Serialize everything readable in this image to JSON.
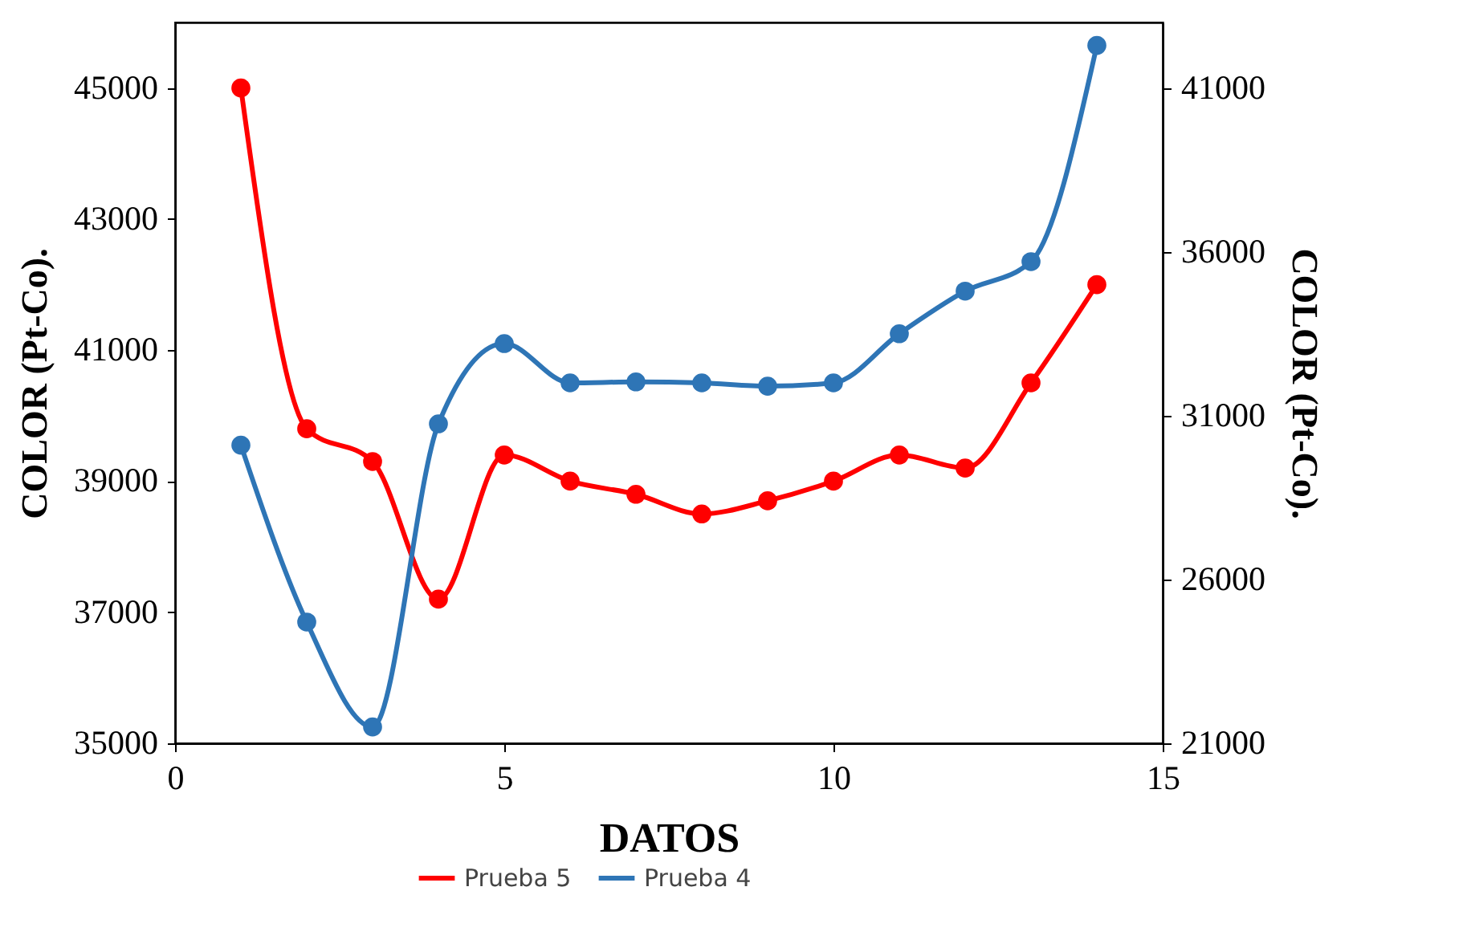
{
  "chart_data": {
    "type": "line",
    "xlabel": "DATOS",
    "ylabel": "COLOR  (Pt-Co).",
    "y2label": "COLOR  (Pt-Co).",
    "x": [
      1,
      2,
      3,
      4,
      5,
      6,
      7,
      8,
      9,
      10,
      11,
      12,
      13,
      14
    ],
    "series": [
      {
        "name": "Prueba 5",
        "color": "#ff0000",
        "values": [
          45000,
          39800,
          39300,
          37200,
          39400,
          39000,
          38800,
          38500,
          38700,
          39000,
          39400,
          39200,
          40500,
          42000
        ]
      },
      {
        "name": "Prueba 4",
        "color": "#2e75b6",
        "axis": "y2",
        "values": [
          30100,
          24700,
          21500,
          30750,
          33200,
          32000,
          32030,
          32000,
          31900,
          32000,
          33500,
          34800,
          35700,
          42300
        ]
      }
    ],
    "xlim": [
      0,
      15
    ],
    "xticks": [
      0,
      5,
      10,
      15
    ],
    "ylim": [
      35000,
      46000
    ],
    "yticks": [
      35000,
      37000,
      39000,
      41000,
      43000,
      45000
    ],
    "y2lim": [
      21000,
      43000
    ],
    "y2ticks": [
      21000,
      26000,
      31000,
      36000,
      41000
    ],
    "grid": false,
    "legend": "bottom",
    "marker": "circle",
    "line_style": "solid"
  }
}
